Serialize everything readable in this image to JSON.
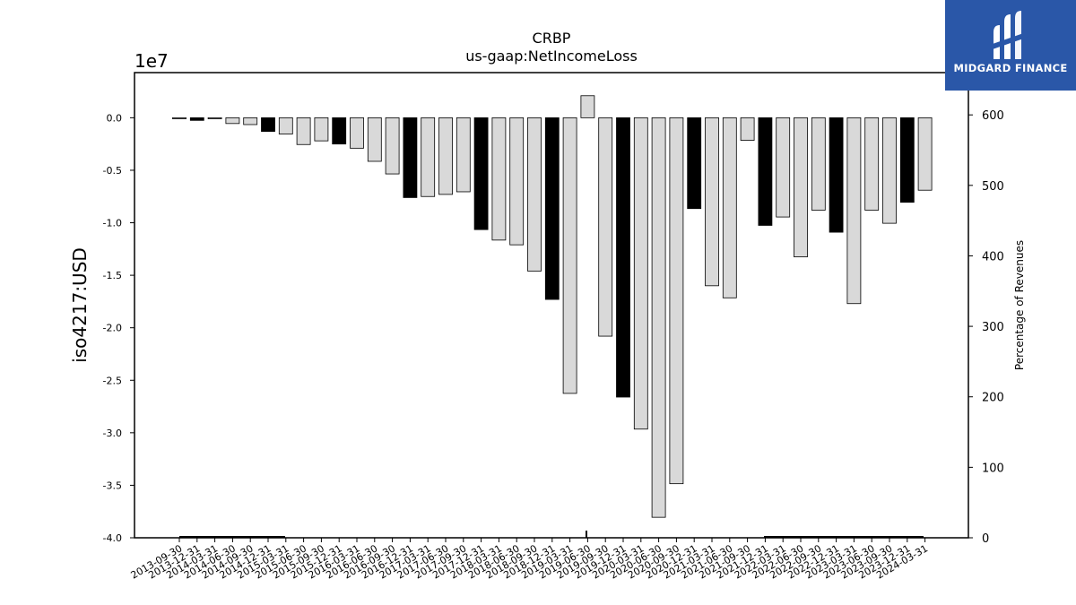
{
  "chart_data": {
    "type": "bar",
    "title": "CRBP",
    "subtitle": "us-gaap:NetIncomeLoss",
    "ylabel": "iso4217:USD",
    "y_offset_label": "1e7",
    "y2label": "Percentage of Revenues",
    "ylim": [
      -40000000,
      4300000
    ],
    "y_ticks": [
      "0.0",
      "-0.5",
      "-1.0",
      "-1.5",
      "-2.0",
      "-2.5",
      "-3.0",
      "-3.5",
      "-4.0"
    ],
    "y2lim": [
      0,
      660
    ],
    "y2_ticks": [
      "0",
      "100",
      "200",
      "300",
      "400",
      "500",
      "600"
    ],
    "grid": false,
    "categories": [
      "2013-09-30",
      "2013-12-31",
      "2014-03-31",
      "2014-06-30",
      "2014-09-30",
      "2014-12-31",
      "2015-03-31",
      "2015-06-30",
      "2015-09-30",
      "2015-12-31",
      "2016-03-31",
      "2016-06-30",
      "2016-09-30",
      "2016-12-31",
      "2017-03-31",
      "2017-06-30",
      "2017-09-30",
      "2017-12-31",
      "2018-03-31",
      "2018-06-30",
      "2018-09-30",
      "2018-12-31",
      "2019-03-31",
      "2019-06-30",
      "2019-09-30",
      "2019-12-31",
      "2020-03-31",
      "2020-06-30",
      "2020-09-30",
      "2020-12-31",
      "2021-03-31",
      "2021-06-30",
      "2021-09-30",
      "2021-12-31",
      "2022-03-31",
      "2022-06-30",
      "2022-09-30",
      "2022-12-31",
      "2023-03-31",
      "2023-06-30",
      "2023-09-30",
      "2023-12-31",
      "2024-03-31"
    ],
    "values": [
      -100000,
      -250000,
      -100000,
      -550000,
      -650000,
      -1300000,
      -1550000,
      -2550000,
      -2200000,
      -2500000,
      -2900000,
      -4150000,
      -5350000,
      -7600000,
      -7500000,
      -7300000,
      -7050000,
      -10650000,
      -11650000,
      -12100000,
      -14600000,
      -17300000,
      -26250000,
      2100000,
      -20800000,
      -26600000,
      -29650000,
      -38050000,
      -34850000,
      -8650000,
      -16000000,
      -17150000,
      -2150000,
      -10250000,
      -9450000,
      -13250000,
      -8800000,
      -10900000,
      -17700000,
      -8800000,
      -10050000,
      -8050000,
      -6900000
    ],
    "annual_flags": [
      false,
      true,
      false,
      false,
      false,
      true,
      false,
      false,
      false,
      true,
      false,
      false,
      false,
      true,
      false,
      false,
      false,
      true,
      false,
      false,
      false,
      true,
      false,
      false,
      false,
      true,
      false,
      false,
      false,
      true,
      false,
      false,
      false,
      true,
      false,
      false,
      false,
      true,
      false,
      false,
      false,
      true,
      false
    ],
    "colors": {
      "quarterly": "#d9d9d9",
      "annual": "#000000",
      "edge": "#000000"
    },
    "legend": "none"
  },
  "logo": {
    "text": "MIDGARD FINANCE",
    "bg": "#2a57a8"
  }
}
